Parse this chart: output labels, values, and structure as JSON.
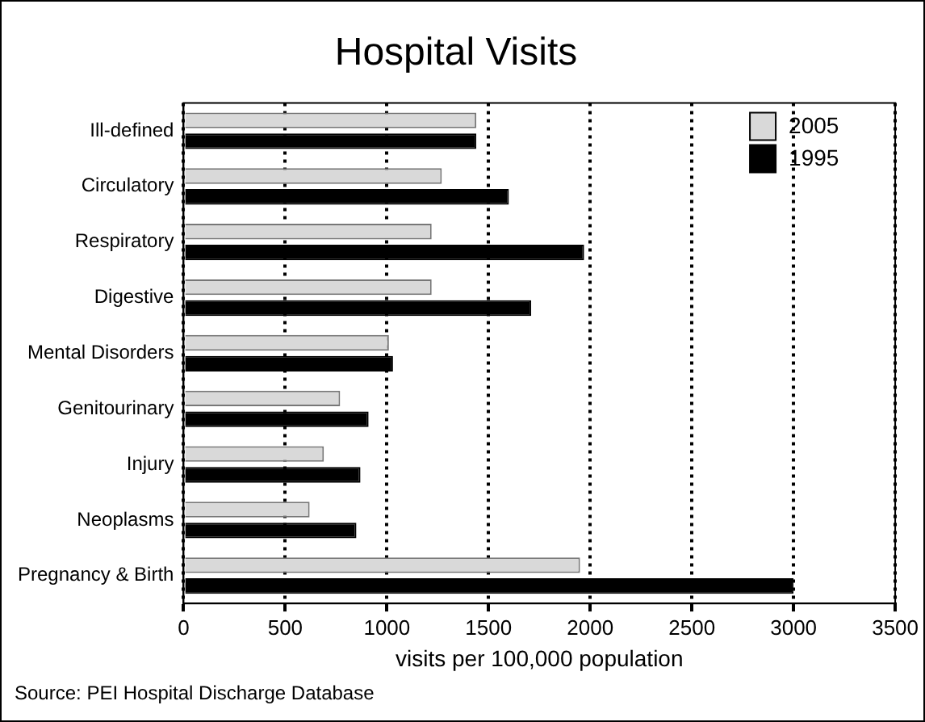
{
  "chart_data": {
    "type": "bar",
    "orientation": "horizontal",
    "title": "Hospital Visits",
    "xlabel": "visits per 100,000 population",
    "categories": [
      "Ill-defined",
      "Circulatory",
      "Respiratory",
      "Digestive",
      "Mental Disorders",
      "Genitourinary",
      "Injury",
      "Neoplasms",
      "Pregnancy & Birth"
    ],
    "series": [
      {
        "name": "2005",
        "color": "#d9d9d9",
        "values": [
          1440,
          1270,
          1220,
          1220,
          1010,
          770,
          690,
          620,
          1950
        ]
      },
      {
        "name": "1995",
        "color": "#000000",
        "values": [
          1440,
          1600,
          1970,
          1710,
          1030,
          910,
          870,
          850,
          3000
        ]
      }
    ],
    "xlim": [
      0,
      3500
    ],
    "xticks": [
      0,
      500,
      1000,
      1500,
      2000,
      2500,
      3000,
      3500
    ],
    "grid": "x",
    "legend": "top right",
    "annotations": [
      "Source: PEI Hospital Discharge Database"
    ]
  }
}
